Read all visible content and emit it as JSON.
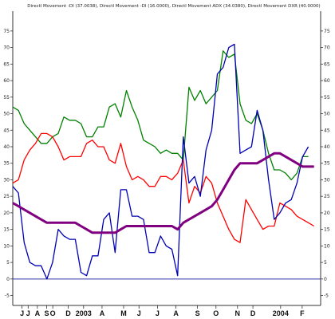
{
  "chart_data": {
    "type": "line",
    "title": "Directl Movement -DI (37.0038), Directl Movement -DI (16.0000), Directl Movement ADX (34.0380), Directl Movement DXR (40.0000)",
    "xlabel": "",
    "ylabel": "",
    "ylim": [
      -8,
      81
    ],
    "y_ticks": [
      -5,
      0,
      5,
      10,
      15,
      20,
      25,
      30,
      35,
      40,
      45,
      50,
      55,
      60,
      65,
      70,
      75
    ],
    "x_tick_labels": [
      {
        "label": "J",
        "x": 3
      },
      {
        "label": "J",
        "x": 5
      },
      {
        "label": "A",
        "x": 8
      },
      {
        "label": "S",
        "x": 11
      },
      {
        "label": "O",
        "x": 13
      },
      {
        "label": "D",
        "x": 18
      },
      {
        "label": "2003",
        "x": 23
      },
      {
        "label": "A",
        "x": 29
      },
      {
        "label": "M",
        "x": 36
      },
      {
        "label": "J",
        "x": 41
      },
      {
        "label": "J",
        "x": 47
      },
      {
        "label": "A",
        "x": 53
      },
      {
        "label": "S",
        "x": 60
      },
      {
        "label": "O",
        "x": 66
      },
      {
        "label": "N",
        "x": 73
      },
      {
        "label": "D",
        "x": 78
      },
      {
        "label": "2004",
        "x": 87
      },
      {
        "label": "F",
        "x": 94
      }
    ],
    "reference_line": 0,
    "series": [
      {
        "color": "#008000",
        "values": [
          52,
          51,
          47,
          45,
          43,
          41,
          41,
          43,
          44,
          49,
          48,
          48,
          47,
          43,
          43,
          46,
          46,
          52,
          53,
          49,
          57,
          52,
          48,
          42,
          41,
          40,
          38,
          39,
          38,
          38,
          36,
          58,
          54,
          57,
          53,
          55,
          57,
          69,
          67,
          68,
          53,
          48,
          47,
          50,
          45,
          38,
          33,
          33,
          32,
          30,
          32,
          37,
          37
        ]
      },
      {
        "color": "#ff0000",
        "values": [
          29,
          30,
          36,
          39,
          41,
          44,
          44,
          43,
          40,
          36,
          37,
          37,
          37,
          41,
          42,
          40,
          40,
          36,
          35,
          41,
          34,
          30,
          31,
          30,
          28,
          28,
          31,
          31,
          30,
          32,
          36,
          23,
          28,
          26,
          31,
          29,
          23,
          19,
          15,
          12,
          11,
          24,
          21,
          18,
          15,
          16,
          16,
          23,
          22,
          21,
          19,
          18,
          17,
          16
        ]
      },
      {
        "color": "#0000b4",
        "values": [
          28,
          26,
          11,
          5,
          4,
          4,
          0,
          5,
          15,
          13,
          12,
          12,
          2,
          1,
          7,
          7,
          18,
          20,
          8,
          27,
          27,
          19,
          19,
          18,
          8,
          8,
          13,
          10,
          9,
          1,
          43,
          29,
          31,
          25,
          39,
          45,
          62,
          64,
          70,
          71,
          38,
          39,
          40,
          51,
          45,
          30,
          18,
          20,
          23,
          24,
          29,
          37,
          40
        ]
      },
      {
        "color": "#800080",
        "values": [
          23,
          22,
          21,
          20,
          19,
          18,
          17,
          17,
          17,
          17,
          17,
          17,
          16,
          15,
          14,
          14,
          14,
          14,
          14,
          15,
          16,
          16,
          16,
          16,
          16,
          16,
          16,
          16,
          16,
          15,
          17,
          18,
          19,
          20,
          21,
          22,
          24,
          27,
          30,
          33,
          35,
          35,
          35,
          35,
          36,
          37,
          38,
          38,
          37,
          36,
          35,
          34,
          34,
          34
        ]
      }
    ],
    "grid": false,
    "legend": "none"
  },
  "colors": {
    "axis": "#333333",
    "zero_line": "#3333aa",
    "background": "#ffffff"
  }
}
